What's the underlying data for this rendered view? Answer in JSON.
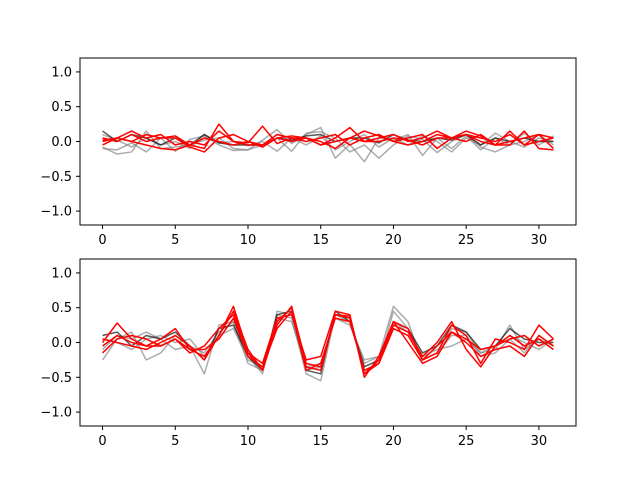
{
  "chart_data": [
    {
      "type": "line",
      "title": "",
      "xlabel": "",
      "ylabel": "",
      "xlim": [
        -1.55,
        32.55
      ],
      "ylim": [
        -1.2,
        1.2
      ],
      "xticks": [
        0,
        5,
        10,
        15,
        20,
        25,
        30
      ],
      "xtick_labels": [
        "0",
        "5",
        "10",
        "15",
        "20",
        "25",
        "30"
      ],
      "yticks": [
        -1.0,
        -0.5,
        0.0,
        0.5,
        1.0
      ],
      "ytick_labels": [
        "−1.0",
        "−0.5",
        "0.0",
        "0.5",
        "1.0"
      ],
      "grid": false,
      "colors": {
        "gray": "#808080",
        "black": "#000000",
        "red": "#ff0000"
      },
      "series": [
        {
          "color": "gray",
          "values": [
            -0.1,
            -0.12,
            -0.02,
            -0.15,
            0.05,
            -0.14,
            0.03,
            0.08,
            -0.05,
            -0.13,
            -0.12,
            0.02,
            0.17,
            -0.03,
            0.1,
            0.2,
            -0.24,
            -0.04,
            -0.29,
            0.05,
            0.02,
            0.1,
            -0.2,
            0.05,
            -0.1,
            0.08,
            -0.12,
            0.05,
            -0.05,
            0.0,
            0.1,
            -0.05
          ]
        },
        {
          "color": "gray",
          "values": [
            -0.08,
            -0.18,
            -0.15,
            0.15,
            -0.1,
            -0.08,
            -0.05,
            0.02,
            0.05,
            -0.1,
            -0.12,
            -0.05,
            0.05,
            -0.14,
            0.12,
            0.14,
            0.05,
            -0.15,
            -0.05,
            -0.24,
            -0.05,
            0.08,
            0.03,
            -0.16,
            0.0,
            0.1,
            -0.08,
            -0.15,
            -0.05,
            0.12,
            -0.05,
            0.08
          ]
        },
        {
          "color": "gray",
          "values": [
            0.1,
            0.02,
            -0.08,
            0.05,
            -0.05,
            0.0,
            -0.1,
            0.1,
            -0.02,
            0.0,
            -0.06,
            0.0,
            -0.14,
            0.05,
            -0.05,
            0.08,
            -0.12,
            0.0,
            0.1,
            -0.08,
            0.05,
            -0.05,
            0.08,
            0.0,
            -0.15,
            0.05,
            -0.05,
            0.12,
            0.0,
            -0.08,
            0.05,
            0.0
          ]
        },
        {
          "color": "black",
          "values": [
            0.15,
            0.0,
            0.1,
            0.05,
            -0.05,
            0.05,
            -0.05,
            0.1,
            -0.02,
            -0.05,
            -0.05,
            -0.05,
            0.05,
            0.02,
            0.08,
            0.1,
            0.0,
            0.05,
            0.05,
            -0.02,
            0.1,
            0.02,
            0.0,
            0.05,
            0.02,
            0.1,
            -0.05,
            0.05,
            0.0,
            0.05,
            0.0,
            0.0
          ]
        },
        {
          "color": "red",
          "values": [
            0.02,
            0.05,
            0.0,
            0.1,
            0.05,
            0.08,
            -0.05,
            -0.1,
            0.25,
            0.0,
            -0.05,
            -0.05,
            0.05,
            0.08,
            0.05,
            -0.05,
            0.05,
            0.2,
            0.0,
            0.05,
            0.1,
            0.0,
            0.05,
            0.15,
            0.05,
            0.1,
            0.0,
            -0.05,
            0.15,
            -0.05,
            0.1,
            0.05
          ]
        },
        {
          "color": "red",
          "values": [
            -0.05,
            0.05,
            0.15,
            0.05,
            0.1,
            -0.05,
            0.0,
            -0.05,
            0.15,
            0.0,
            -0.02,
            0.22,
            -0.03,
            0.05,
            0.05,
            0.0,
            -0.1,
            0.05,
            0.15,
            0.08,
            0.0,
            -0.05,
            0.0,
            0.1,
            0.05,
            0.15,
            0.08,
            -0.05,
            -0.05,
            0.15,
            -0.1,
            -0.12
          ]
        },
        {
          "color": "red",
          "values": [
            0.05,
            0.0,
            0.1,
            0.0,
            0.05,
            0.05,
            -0.08,
            -0.15,
            0.05,
            0.1,
            0.0,
            -0.05,
            0.1,
            0.05,
            0.0,
            0.05,
            0.1,
            -0.05,
            0.05,
            0.1,
            0.0,
            0.05,
            0.1,
            -0.1,
            0.05,
            0.1,
            0.05,
            0.0,
            0.1,
            -0.05,
            0.0,
            0.05
          ]
        },
        {
          "color": "red",
          "values": [
            0.0,
            0.05,
            0.0,
            -0.05,
            -0.1,
            -0.12,
            -0.05,
            0.05,
            0.0,
            -0.05,
            0.0,
            -0.08,
            0.05,
            0.0,
            0.05,
            -0.05,
            0.0,
            0.05,
            0.0,
            0.0,
            0.05,
            0.02,
            -0.05,
            0.05,
            0.05,
            0.0,
            0.1,
            -0.05,
            0.0,
            0.05,
            0.1,
            -0.1
          ]
        }
      ]
    },
    {
      "type": "line",
      "title": "",
      "xlabel": "",
      "ylabel": "",
      "xlim": [
        -1.55,
        32.55
      ],
      "ylim": [
        -1.2,
        1.2
      ],
      "xticks": [
        0,
        5,
        10,
        15,
        20,
        25,
        30
      ],
      "xtick_labels": [
        "0",
        "5",
        "10",
        "15",
        "20",
        "25",
        "30"
      ],
      "yticks": [
        -1.0,
        -0.5,
        0.0,
        0.5,
        1.0
      ],
      "ytick_labels": [
        "−1.0",
        "−0.5",
        "0.0",
        "0.5",
        "1.0"
      ],
      "grid": false,
      "colors": {
        "gray": "#808080",
        "black": "#000000",
        "red": "#ff0000"
      },
      "series": [
        {
          "color": "gray",
          "values": [
            -0.25,
            0.05,
            0.15,
            -0.25,
            -0.15,
            0.1,
            -0.05,
            -0.45,
            0.25,
            0.3,
            -0.3,
            -0.4,
            0.4,
            0.35,
            -0.45,
            -0.55,
            0.4,
            0.3,
            -0.3,
            -0.2,
            0.52,
            0.3,
            -0.3,
            -0.2,
            0.2,
            0.15,
            -0.15,
            -0.1,
            0.25,
            -0.1,
            0.05,
            -0.05
          ]
        },
        {
          "color": "gray",
          "values": [
            -0.1,
            0.1,
            0.05,
            0.15,
            0.05,
            -0.1,
            -0.05,
            -0.15,
            0.15,
            0.3,
            -0.2,
            -0.45,
            0.45,
            0.4,
            -0.4,
            -0.35,
            0.4,
            0.35,
            -0.4,
            -0.3,
            0.45,
            0.2,
            -0.25,
            -0.15,
            0.1,
            0.1,
            -0.2,
            -0.15,
            0.05,
            -0.15,
            0.1,
            -0.05
          ]
        },
        {
          "color": "gray",
          "values": [
            0.05,
            0.0,
            -0.1,
            0.05,
            0.1,
            0.0,
            0.05,
            -0.2,
            0.1,
            0.2,
            -0.25,
            -0.35,
            0.35,
            0.3,
            -0.35,
            -0.3,
            0.35,
            0.25,
            -0.25,
            -0.2,
            0.3,
            0.15,
            -0.2,
            -0.1,
            -0.05,
            0.05,
            -0.15,
            -0.05,
            0.1,
            0.0,
            -0.1,
            0.05
          ]
        },
        {
          "color": "black",
          "values": [
            0.1,
            0.15,
            -0.05,
            0.1,
            0.05,
            0.15,
            -0.05,
            -0.25,
            0.2,
            0.25,
            -0.2,
            -0.4,
            0.4,
            0.45,
            -0.4,
            -0.45,
            0.45,
            0.3,
            -0.35,
            -0.25,
            0.3,
            0.2,
            -0.15,
            -0.05,
            0.25,
            0.15,
            -0.1,
            -0.05,
            0.2,
            0.05,
            0.0,
            0.0
          ]
        },
        {
          "color": "red",
          "values": [
            0.0,
            0.28,
            0.05,
            -0.05,
            0.05,
            0.2,
            -0.1,
            -0.2,
            0.1,
            0.52,
            -0.15,
            -0.4,
            0.25,
            0.52,
            -0.35,
            -0.4,
            0.4,
            0.35,
            -0.45,
            -0.3,
            0.3,
            0.2,
            -0.25,
            -0.15,
            0.25,
            0.1,
            -0.3,
            0.05,
            0.0,
            -0.1,
            0.25,
            0.05
          ]
        },
        {
          "color": "red",
          "values": [
            -0.15,
            0.05,
            0.1,
            0.05,
            -0.05,
            0.05,
            -0.15,
            -0.05,
            0.2,
            0.4,
            -0.15,
            -0.3,
            0.35,
            0.4,
            -0.25,
            -0.2,
            0.45,
            0.4,
            -0.5,
            -0.2,
            0.3,
            0.0,
            -0.3,
            -0.2,
            0.15,
            0.05,
            -0.1,
            -0.05,
            0.1,
            -0.05,
            0.05,
            -0.1
          ]
        },
        {
          "color": "red",
          "values": [
            0.05,
            0.0,
            -0.05,
            -0.1,
            0.0,
            0.1,
            -0.05,
            -0.25,
            0.1,
            0.45,
            -0.1,
            -0.4,
            0.3,
            0.5,
            -0.3,
            -0.35,
            0.4,
            0.38,
            -0.45,
            -0.25,
            0.25,
            0.15,
            -0.2,
            0.0,
            0.3,
            -0.1,
            -0.35,
            -0.05,
            0.05,
            0.1,
            -0.05,
            0.05
          ]
        },
        {
          "color": "red",
          "values": [
            -0.05,
            0.1,
            0.0,
            -0.05,
            -0.05,
            0.05,
            -0.1,
            -0.1,
            0.05,
            0.35,
            -0.2,
            -0.35,
            0.2,
            0.45,
            -0.4,
            -0.3,
            0.35,
            0.3,
            -0.4,
            -0.3,
            0.2,
            0.1,
            -0.25,
            -0.05,
            0.15,
            0.0,
            -0.2,
            -0.1,
            -0.05,
            -0.2,
            0.1,
            -0.05
          ]
        }
      ]
    }
  ]
}
